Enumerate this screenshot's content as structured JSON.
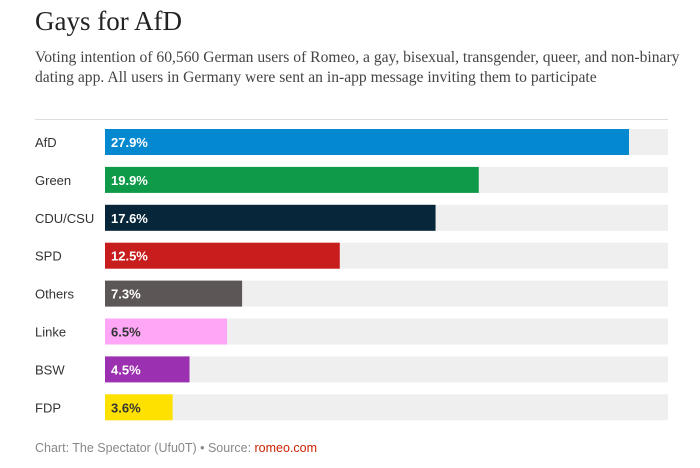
{
  "chart_data": {
    "type": "bar",
    "orientation": "horizontal",
    "title": "Gays for AfD",
    "subtitle": "Voting intention of 60,560 German users of Romeo, a gay, bisexual, transgender, queer, and non-binary dating app. All users in Germany were sent an in-app message inviting them to participate",
    "categories": [
      "AfD",
      "Green",
      "CDU/CSU",
      "SPD",
      "Others",
      "Linke",
      "BSW",
      "FDP"
    ],
    "values": [
      27.9,
      19.9,
      17.6,
      12.5,
      7.3,
      6.5,
      4.5,
      3.6
    ],
    "labels": [
      "27.9%",
      "19.9%",
      "17.6%",
      "12.5%",
      "7.3%",
      "6.5%",
      "4.5%",
      "3.6%"
    ],
    "colors": [
      "#0489d1",
      "#0f9a49",
      "#072639",
      "#c81d1d",
      "#5d5657",
      "#ffa6f6",
      "#9b30b0",
      "#ffe100"
    ],
    "label_colors": [
      "#ffffff",
      "#ffffff",
      "#ffffff",
      "#ffffff",
      "#ffffff",
      "#333333",
      "#ffffff",
      "#333333"
    ],
    "track_color": "#efefef",
    "xlim": [
      0,
      30
    ]
  },
  "footer": {
    "credit": "Chart: The Spectator (Ufu0T) • Source: ",
    "source_link": "romeo.com"
  }
}
